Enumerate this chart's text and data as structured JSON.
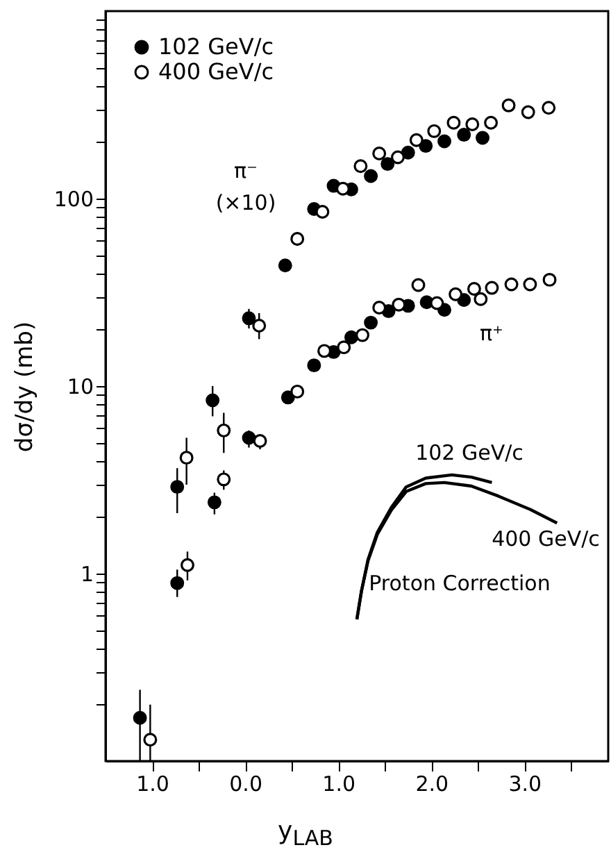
{
  "chart_data": {
    "type": "scatter",
    "xlabel": "y$_{LAB}$",
    "ylabel": "dσ/dy  (mb)",
    "log": "y",
    "legend": "top left",
    "marker": "circle",
    "grid": false,
    "xlim": [
      -1.5,
      3.9
    ],
    "ylim": [
      0.1,
      1000
    ],
    "xticks": [
      {
        "value": -1,
        "label": "1.0"
      },
      {
        "value": -0.5,
        "label": null
      },
      {
        "value": 0,
        "label": "0.0"
      },
      {
        "value": 0.5,
        "label": null
      },
      {
        "value": 1,
        "label": "1.0"
      },
      {
        "value": 1.5,
        "label": null
      },
      {
        "value": 2,
        "label": "2.0"
      },
      {
        "value": 2.5,
        "label": null
      },
      {
        "value": 3,
        "label": "3.0"
      },
      {
        "value": 3.5,
        "label": null
      }
    ],
    "yticks": [
      {
        "value": 0.2,
        "label": null
      },
      {
        "value": 0.3,
        "label": null
      },
      {
        "value": 0.4,
        "label": null
      },
      {
        "value": 0.5,
        "label": null
      },
      {
        "value": 0.6,
        "label": null
      },
      {
        "value": 0.7,
        "label": null
      },
      {
        "value": 0.8,
        "label": null
      },
      {
        "value": 0.9,
        "label": null
      },
      1,
      {
        "value": 2,
        "label": null
      },
      {
        "value": 3,
        "label": null
      },
      {
        "value": 4,
        "label": null
      },
      {
        "value": 5,
        "label": null
      },
      {
        "value": 6,
        "label": null
      },
      {
        "value": 7,
        "label": null
      },
      {
        "value": 8,
        "label": null
      },
      {
        "value": 9,
        "label": null
      },
      10,
      {
        "value": 20,
        "label": null
      },
      {
        "value": 30,
        "label": null
      },
      {
        "value": 40,
        "label": null
      },
      {
        "value": 50,
        "label": null
      },
      {
        "value": 60,
        "label": null
      },
      {
        "value": 70,
        "label": null
      },
      {
        "value": 80,
        "label": null
      },
      {
        "value": 90,
        "label": null
      },
      100,
      {
        "value": 200,
        "label": null
      },
      {
        "value": 300,
        "label": null
      },
      {
        "value": 400,
        "label": null
      },
      {
        "value": 500,
        "label": null
      },
      {
        "value": 600,
        "label": null
      },
      {
        "value": 700,
        "label": null
      },
      {
        "value": 800,
        "label": null
      },
      {
        "value": 900,
        "label": null
      }
    ],
    "series": [
      {
        "name": "102 GeV/c",
        "type": "scatter",
        "color": "#000000",
        "x": [
          -1.13,
          -0.73,
          -0.35,
          0.04,
          0.43,
          0.74,
          0.95,
          1.14,
          1.35,
          1.53,
          1.75,
          1.94,
          2.14,
          2.35,
          2.55,
          -0.73,
          -0.33,
          0.04,
          0.46,
          0.74,
          0.95,
          1.14,
          1.35,
          1.54,
          1.75,
          1.95,
          2.14,
          2.35
        ],
        "values": [
          0.17,
          2.9,
          8.4,
          23,
          44,
          88,
          117,
          112,
          132,
          153,
          176,
          191,
          202,
          219,
          211,
          0.89,
          2.4,
          5.3,
          8.7,
          12.9,
          15.2,
          18.2,
          21.8,
          25.1,
          26.8,
          28,
          25.5,
          28.8
        ],
        "errors": [
          [
            0.1,
            0.24
          ],
          [
            2.1,
            3.65
          ],
          [
            6.9,
            10
          ],
          [
            20.3,
            25.8
          ],
          null,
          null,
          null,
          null,
          null,
          null,
          null,
          null,
          null,
          null,
          null,
          [
            0.75,
            1.05
          ],
          [
            2.07,
            2.7
          ],
          [
            4.7,
            5.8
          ],
          null,
          null,
          null,
          null,
          null,
          null,
          null,
          null,
          null,
          null
        ]
      },
      {
        "name": "400 GeV/c",
        "type": "scatter",
        "color": "#000000",
        "x": [
          -1.02,
          -0.63,
          -0.23,
          0.15,
          0.56,
          0.83,
          1.05,
          1.24,
          1.44,
          1.64,
          1.84,
          2.03,
          2.24,
          2.44,
          2.64,
          2.83,
          3.04,
          3.26,
          -0.62,
          -0.23,
          0.16,
          0.56,
          0.85,
          1.06,
          1.26,
          1.44,
          1.65,
          1.86,
          2.06,
          2.26,
          2.46,
          2.53,
          2.65,
          2.86,
          3.06,
          3.27
        ],
        "values": [
          0.13,
          4.15,
          5.8,
          21,
          61,
          85,
          113,
          149,
          174,
          166,
          205,
          229,
          254,
          249,
          254,
          314,
          289,
          305,
          1.11,
          3.18,
          5.1,
          9.35,
          15.4,
          16.1,
          18.7,
          26.2,
          27.2,
          34.6,
          27.7,
          30.9,
          33,
          29.1,
          33.4,
          34.9,
          34.9,
          36.9
        ],
        "errors": [
          [
            0.1,
            0.2
          ],
          [
            2.98,
            5.3
          ],
          [
            4.4,
            7.2
          ],
          [
            17.8,
            24.5
          ],
          [
            56,
            66
          ],
          null,
          null,
          null,
          null,
          null,
          null,
          null,
          null,
          null,
          null,
          null,
          null,
          null,
          [
            0.92,
            1.31
          ],
          [
            2.8,
            3.55
          ],
          [
            4.6,
            5.5
          ],
          null,
          null,
          null,
          null,
          null,
          null,
          null,
          null,
          null,
          null,
          null,
          null,
          null,
          null,
          null
        ]
      },
      {
        "type": "line",
        "marker": "none",
        "color": "#000000",
        "x": [
          1.2,
          1.25,
          1.32,
          1.42,
          1.57,
          1.73,
          1.94,
          2.22,
          2.43,
          2.65
        ],
        "values": [
          0.57,
          0.81,
          1.19,
          1.66,
          2.25,
          2.9,
          3.23,
          3.36,
          3.27,
          3.06
        ]
      },
      {
        "type": "line",
        "marker": "none",
        "color": "#000000",
        "x": [
          1.2,
          1.25,
          1.32,
          1.42,
          1.57,
          1.73,
          1.94,
          2.14,
          2.43,
          2.72,
          3.06,
          3.35
        ],
        "values": [
          0.57,
          0.81,
          1.17,
          1.62,
          2.18,
          2.74,
          3.02,
          3.06,
          2.93,
          2.59,
          2.2,
          1.86
        ]
      }
    ],
    "annotations": [
      "π⁻",
      "(×10)",
      "π⁺",
      "102 GeV/c",
      "400 GeV/c",
      "Proton Correction"
    ]
  }
}
